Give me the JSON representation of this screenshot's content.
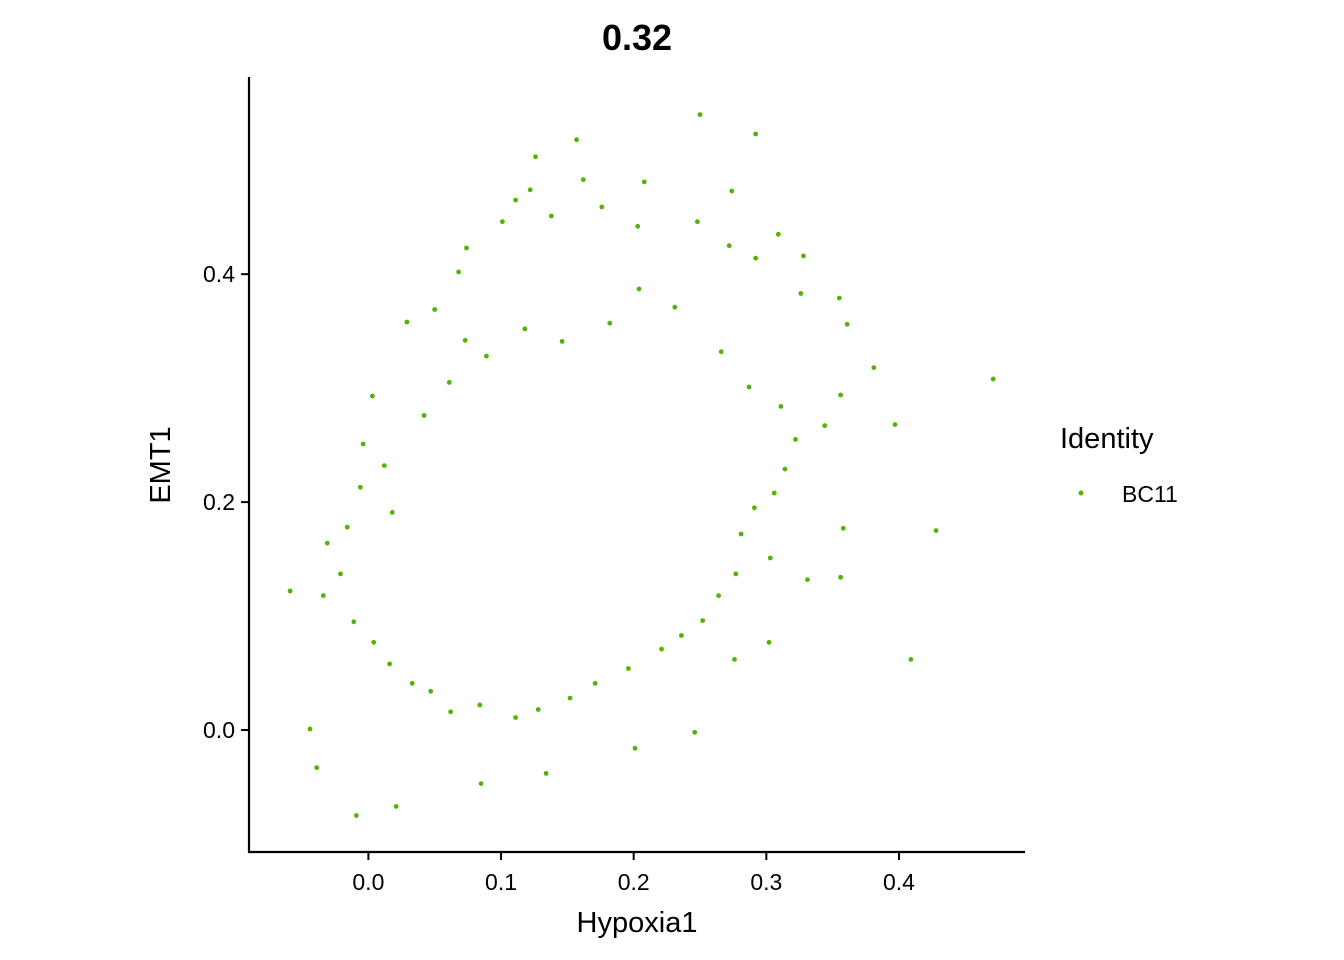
{
  "chart_data": {
    "type": "scatter",
    "title": "0.32",
    "xlabel": "Hypoxia1",
    "ylabel": "EMT1",
    "xlim": [
      -0.09,
      0.495
    ],
    "ylim": [
      -0.107,
      0.573
    ],
    "xticks": [
      0.0,
      0.1,
      0.2,
      0.3,
      0.4
    ],
    "xtick_labels": [
      "0.0",
      "0.1",
      "0.2",
      "0.3",
      "0.4"
    ],
    "yticks": [
      0.0,
      0.2,
      0.4
    ],
    "ytick_labels": [
      "0.0",
      "0.2",
      "0.4"
    ],
    "grid": false,
    "legend": {
      "title": "Identity",
      "placement": "right",
      "entries": [
        {
          "label": "BC11",
          "color": "#53B400"
        }
      ]
    },
    "series": [
      {
        "name": "BC11",
        "color": "#53B400",
        "points": [
          [
            0.25,
            0.54
          ],
          [
            0.157,
            0.518
          ],
          [
            0.292,
            0.523
          ],
          [
            0.126,
            0.503
          ],
          [
            0.162,
            0.483
          ],
          [
            0.208,
            0.481
          ],
          [
            0.274,
            0.473
          ],
          [
            0.122,
            0.474
          ],
          [
            0.111,
            0.465
          ],
          [
            0.176,
            0.459
          ],
          [
            0.138,
            0.451
          ],
          [
            0.248,
            0.446
          ],
          [
            0.101,
            0.446
          ],
          [
            0.203,
            0.442
          ],
          [
            0.309,
            0.435
          ],
          [
            0.328,
            0.416
          ],
          [
            0.272,
            0.425
          ],
          [
            0.074,
            0.423
          ],
          [
            0.292,
            0.414
          ],
          [
            0.068,
            0.402
          ],
          [
            0.397,
            0.268
          ],
          [
            0.471,
            0.308
          ],
          [
            0.381,
            0.318
          ],
          [
            0.361,
            0.356
          ],
          [
            0.356,
            0.294
          ],
          [
            0.344,
            0.267
          ],
          [
            0.428,
            0.175
          ],
          [
            0.409,
            0.062
          ],
          [
            0.358,
            0.177
          ],
          [
            0.356,
            0.134
          ],
          [
            0.331,
            0.132
          ],
          [
            0.302,
            0.077
          ],
          [
            0.276,
            0.062
          ],
          [
            0.246,
            -0.002
          ],
          [
            0.201,
            -0.016
          ],
          [
            0.134,
            -0.038
          ],
          [
            0.085,
            -0.047
          ],
          [
            0.021,
            -0.067
          ],
          [
            -0.009,
            -0.075
          ],
          [
            -0.039,
            -0.033
          ],
          [
            -0.044,
            0.001
          ],
          [
            -0.059,
            0.122
          ],
          [
            -0.034,
            0.118
          ],
          [
            -0.031,
            0.164
          ],
          [
            0.003,
            0.293
          ],
          [
            0.029,
            0.358
          ],
          [
            0.05,
            0.369
          ],
          [
            0.073,
            0.342
          ],
          [
            0.326,
            0.383
          ],
          [
            0.355,
            0.379
          ],
          [
            0.012,
            0.232
          ],
          [
            -0.006,
            0.213
          ],
          [
            0.018,
            0.191
          ],
          [
            0.042,
            0.276
          ],
          [
            0.061,
            0.305
          ],
          [
            0.089,
            0.328
          ],
          [
            0.118,
            0.352
          ],
          [
            0.146,
            0.341
          ],
          [
            0.182,
            0.357
          ],
          [
            0.204,
            0.387
          ],
          [
            0.231,
            0.371
          ],
          [
            0.266,
            0.332
          ],
          [
            0.287,
            0.301
          ],
          [
            0.311,
            0.284
          ],
          [
            0.322,
            0.255
          ],
          [
            0.314,
            0.229
          ],
          [
            0.306,
            0.208
          ],
          [
            0.291,
            0.195
          ],
          [
            0.281,
            0.172
          ],
          [
            0.303,
            0.151
          ],
          [
            0.277,
            0.137
          ],
          [
            0.264,
            0.118
          ],
          [
            0.252,
            0.096
          ],
          [
            0.236,
            0.083
          ],
          [
            0.221,
            0.071
          ],
          [
            0.196,
            0.054
          ],
          [
            0.171,
            0.041
          ],
          [
            0.152,
            0.028
          ],
          [
            0.128,
            0.018
          ],
          [
            0.111,
            0.011
          ],
          [
            0.084,
            0.022
          ],
          [
            0.062,
            0.016
          ],
          [
            0.047,
            0.034
          ],
          [
            0.033,
            0.041
          ],
          [
            0.016,
            0.058
          ],
          [
            0.004,
            0.077
          ],
          [
            -0.011,
            0.095
          ],
          [
            -0.021,
            0.137
          ],
          [
            -0.016,
            0.178
          ],
          [
            -0.004,
            0.251
          ]
        ]
      }
    ]
  }
}
